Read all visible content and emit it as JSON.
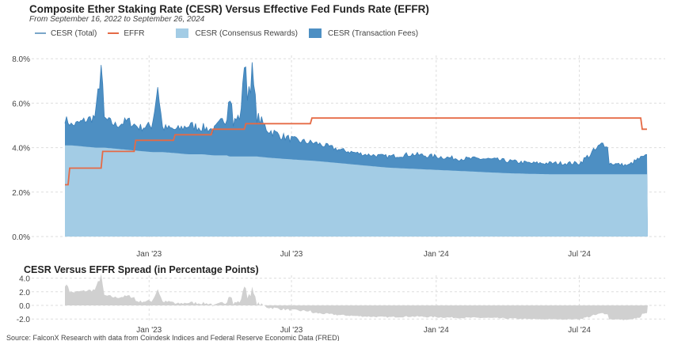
{
  "colors": {
    "consensus": "#a3cce5",
    "fees": "#4d8fc3",
    "effr": "#e56a45",
    "spread": "#d0d0d0",
    "grid": "#dddddd"
  },
  "chart_data": [
    {
      "type": "area",
      "title": "Composite Ether Staking Rate (CESR) Versus Effective Fed Funds Rate (EFFR)",
      "subtitle": "From September 16, 2022 to September 26, 2024",
      "legend": [
        "CESR (Total)",
        "EFFR",
        "CESR (Consensus Rewards)",
        "CESR (Transaction Fees)"
      ],
      "legend_placement": "top",
      "yticks": [
        "0.0%",
        "2.0%",
        "4.0%",
        "6.0%",
        "8.0%"
      ],
      "ylim": [
        0,
        8.3
      ],
      "xticks": [
        {
          "date": "2023-01-01",
          "label": "Jan '23"
        },
        {
          "date": "2023-07-01",
          "label": "Jul '23"
        },
        {
          "date": "2024-01-01",
          "label": "Jan '24"
        },
        {
          "date": "2024-07-01",
          "label": "Jul '24"
        }
      ],
      "xlim": [
        "2022-09-16",
        "2024-09-26"
      ],
      "cesr": [
        [
          "2022-09-16",
          5.3,
          4.1
        ],
        [
          "2022-09-25",
          5.0,
          4.1
        ],
        [
          "2022-10-10",
          5.2,
          4.05
        ],
        [
          "2022-10-25",
          5.4,
          4.0
        ],
        [
          "2022-11-01",
          7.7,
          4.0
        ],
        [
          "2022-11-05",
          5.3,
          4.0
        ],
        [
          "2022-11-20",
          5.0,
          3.95
        ],
        [
          "2022-12-05",
          5.2,
          3.9
        ],
        [
          "2022-12-20",
          4.9,
          3.85
        ],
        [
          "2023-01-05",
          5.0,
          3.8
        ],
        [
          "2023-01-12",
          6.8,
          3.8
        ],
        [
          "2023-01-18",
          4.9,
          3.8
        ],
        [
          "2023-02-05",
          4.8,
          3.75
        ],
        [
          "2023-02-20",
          5.0,
          3.7
        ],
        [
          "2023-03-10",
          4.9,
          3.7
        ],
        [
          "2023-03-25",
          4.8,
          3.65
        ],
        [
          "2023-04-10",
          5.4,
          3.65
        ],
        [
          "2023-04-13",
          7.0,
          3.6
        ],
        [
          "2023-04-18",
          5.1,
          3.6
        ],
        [
          "2023-04-28",
          5.5,
          3.6
        ],
        [
          "2023-05-01",
          8.1,
          3.6
        ],
        [
          "2023-05-06",
          6.5,
          3.6
        ],
        [
          "2023-05-12",
          7.3,
          3.6
        ],
        [
          "2023-05-18",
          5.4,
          3.6
        ],
        [
          "2023-06-01",
          4.8,
          3.55
        ],
        [
          "2023-06-20",
          4.5,
          3.5
        ],
        [
          "2023-07-10",
          4.3,
          3.45
        ],
        [
          "2023-08-01",
          4.2,
          3.4
        ],
        [
          "2023-09-01",
          3.9,
          3.3
        ],
        [
          "2023-10-01",
          3.7,
          3.2
        ],
        [
          "2023-11-01",
          3.6,
          3.1
        ],
        [
          "2023-12-01",
          3.7,
          3.05
        ],
        [
          "2024-01-01",
          3.6,
          3.0
        ],
        [
          "2024-02-01",
          3.5,
          2.95
        ],
        [
          "2024-03-01",
          3.5,
          2.9
        ],
        [
          "2024-04-01",
          3.4,
          2.85
        ],
        [
          "2024-05-01",
          3.3,
          2.82
        ],
        [
          "2024-06-01",
          3.3,
          2.8
        ],
        [
          "2024-07-01",
          3.3,
          2.8
        ],
        [
          "2024-08-05",
          4.3,
          2.8
        ],
        [
          "2024-08-08",
          3.3,
          2.8
        ],
        [
          "2024-09-01",
          3.2,
          2.8
        ],
        [
          "2024-09-15",
          3.5,
          2.8
        ],
        [
          "2024-09-26",
          3.6,
          2.8
        ]
      ],
      "cesr_columns": [
        "date",
        "total",
        "consensus"
      ],
      "effr_steps": [
        [
          "2022-09-16",
          2.33
        ],
        [
          "2022-09-22",
          3.08
        ],
        [
          "2022-11-03",
          3.83
        ],
        [
          "2022-12-15",
          4.33
        ],
        [
          "2023-02-02",
          4.58
        ],
        [
          "2023-03-23",
          4.83
        ],
        [
          "2023-05-04",
          5.08
        ],
        [
          "2023-07-27",
          5.33
        ],
        [
          "2024-09-19",
          4.83
        ],
        [
          "2024-09-26",
          4.83
        ]
      ]
    },
    {
      "type": "area",
      "title": "CESR Versus EFFR Spread (in Percentage Points)",
      "yticks": [
        "-2.0",
        "0.0",
        "2.0",
        "4.0"
      ],
      "ylim": [
        -2.4,
        4.2
      ],
      "series": "CESR (Total) minus EFFR"
    }
  ],
  "source": "Source: FalconX Research with data from Coindesk Indices and Federal Reserve Economic Data (FRED)"
}
